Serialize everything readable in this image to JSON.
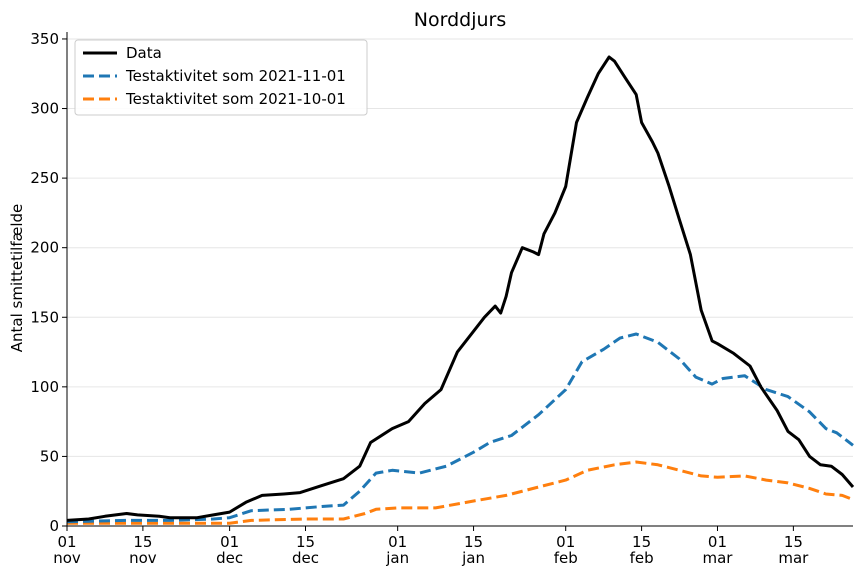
{
  "chart_data": {
    "type": "line",
    "title": "Norddjurs",
    "xlabel": "",
    "ylabel": "Antal smittetilfælde",
    "ylim": [
      0,
      355
    ],
    "xlim": [
      "2021-11-01",
      "2022-03-26"
    ],
    "grid": "horizontal",
    "legend_position": "top-left",
    "yticks": [
      0,
      50,
      100,
      150,
      200,
      250,
      300,
      350
    ],
    "xticks": [
      {
        "date": "2021-11-01",
        "day": "01",
        "month": "nov"
      },
      {
        "date": "2021-11-15",
        "day": "15",
        "month": "nov"
      },
      {
        "date": "2021-12-01",
        "day": "01",
        "month": "dec"
      },
      {
        "date": "2021-12-15",
        "day": "15",
        "month": "dec"
      },
      {
        "date": "2022-01-01",
        "day": "01",
        "month": "jan"
      },
      {
        "date": "2022-01-15",
        "day": "15",
        "month": "jan"
      },
      {
        "date": "2022-02-01",
        "day": "01",
        "month": "feb"
      },
      {
        "date": "2022-02-15",
        "day": "15",
        "month": "feb"
      },
      {
        "date": "2022-03-01",
        "day": "01",
        "month": "mar"
      },
      {
        "date": "2022-03-15",
        "day": "15",
        "month": "mar"
      }
    ],
    "series": [
      {
        "name": "Data",
        "color": "#000000",
        "style": "solid",
        "points": [
          [
            "2021-11-01",
            4
          ],
          [
            "2021-11-05",
            5
          ],
          [
            "2021-11-08",
            7
          ],
          [
            "2021-11-12",
            9
          ],
          [
            "2021-11-14",
            8
          ],
          [
            "2021-11-18",
            7
          ],
          [
            "2021-11-20",
            6
          ],
          [
            "2021-11-25",
            6
          ],
          [
            "2021-11-28",
            8
          ],
          [
            "2021-12-01",
            10
          ],
          [
            "2021-12-04",
            17
          ],
          [
            "2021-12-07",
            22
          ],
          [
            "2021-12-11",
            23
          ],
          [
            "2021-12-14",
            24
          ],
          [
            "2021-12-18",
            29
          ],
          [
            "2021-12-22",
            34
          ],
          [
            "2021-12-25",
            43
          ],
          [
            "2021-12-27",
            60
          ],
          [
            "2021-12-31",
            70
          ],
          [
            "2022-01-03",
            75
          ],
          [
            "2022-01-06",
            88
          ],
          [
            "2022-01-09",
            98
          ],
          [
            "2022-01-12",
            125
          ],
          [
            "2022-01-15",
            140
          ],
          [
            "2022-01-17",
            150
          ],
          [
            "2022-01-19",
            158
          ],
          [
            "2022-01-20",
            153
          ],
          [
            "2022-01-21",
            165
          ],
          [
            "2022-01-22",
            182
          ],
          [
            "2022-01-24",
            200
          ],
          [
            "2022-01-26",
            197
          ],
          [
            "2022-01-27",
            195
          ],
          [
            "2022-01-28",
            210
          ],
          [
            "2022-01-30",
            225
          ],
          [
            "2022-02-01",
            244
          ],
          [
            "2022-02-03",
            290
          ],
          [
            "2022-02-05",
            308
          ],
          [
            "2022-02-07",
            325
          ],
          [
            "2022-02-09",
            337
          ],
          [
            "2022-02-10",
            334
          ],
          [
            "2022-02-12",
            322
          ],
          [
            "2022-02-14",
            310
          ],
          [
            "2022-02-15",
            290
          ],
          [
            "2022-02-17",
            276
          ],
          [
            "2022-02-18",
            268
          ],
          [
            "2022-02-20",
            245
          ],
          [
            "2022-02-22",
            220
          ],
          [
            "2022-02-24",
            195
          ],
          [
            "2022-02-26",
            155
          ],
          [
            "2022-02-28",
            133
          ],
          [
            "2022-03-01",
            131
          ],
          [
            "2022-03-04",
            124
          ],
          [
            "2022-03-07",
            115
          ],
          [
            "2022-03-09",
            100
          ],
          [
            "2022-03-12",
            83
          ],
          [
            "2022-03-14",
            68
          ],
          [
            "2022-03-16",
            62
          ],
          [
            "2022-03-18",
            50
          ],
          [
            "2022-03-20",
            44
          ],
          [
            "2022-03-22",
            43
          ],
          [
            "2022-03-24",
            37
          ],
          [
            "2022-03-26",
            28
          ]
        ]
      },
      {
        "name": "Testaktivitet som 2021-11-01",
        "color": "#1f77b4",
        "style": "dashed",
        "points": [
          [
            "2021-11-01",
            3
          ],
          [
            "2021-11-12",
            4
          ],
          [
            "2021-11-20",
            4
          ],
          [
            "2021-11-28",
            5
          ],
          [
            "2021-12-01",
            6
          ],
          [
            "2021-12-05",
            11
          ],
          [
            "2021-12-12",
            12
          ],
          [
            "2021-12-18",
            14
          ],
          [
            "2021-12-22",
            15
          ],
          [
            "2021-12-25",
            25
          ],
          [
            "2021-12-28",
            38
          ],
          [
            "2021-12-31",
            40
          ],
          [
            "2022-01-05",
            38
          ],
          [
            "2022-01-10",
            43
          ],
          [
            "2022-01-15",
            53
          ],
          [
            "2022-01-18",
            60
          ],
          [
            "2022-01-22",
            65
          ],
          [
            "2022-01-27",
            80
          ],
          [
            "2022-02-01",
            98
          ],
          [
            "2022-02-04",
            118
          ],
          [
            "2022-02-08",
            127
          ],
          [
            "2022-02-11",
            135
          ],
          [
            "2022-02-14",
            138
          ],
          [
            "2022-02-18",
            132
          ],
          [
            "2022-02-22",
            120
          ],
          [
            "2022-02-25",
            107
          ],
          [
            "2022-02-28",
            102
          ],
          [
            "2022-03-02",
            106
          ],
          [
            "2022-03-06",
            108
          ],
          [
            "2022-03-10",
            98
          ],
          [
            "2022-03-14",
            93
          ],
          [
            "2022-03-18",
            82
          ],
          [
            "2022-03-21",
            70
          ],
          [
            "2022-03-23",
            67
          ],
          [
            "2022-03-26",
            58
          ]
        ]
      },
      {
        "name": "Testaktivitet som 2021-10-01",
        "color": "#ff7f0e",
        "style": "dashed",
        "points": [
          [
            "2021-11-01",
            2
          ],
          [
            "2021-11-15",
            2
          ],
          [
            "2021-11-25",
            2
          ],
          [
            "2021-12-01",
            2
          ],
          [
            "2021-12-05",
            4
          ],
          [
            "2021-12-15",
            5
          ],
          [
            "2021-12-22",
            5
          ],
          [
            "2021-12-26",
            9
          ],
          [
            "2021-12-28",
            12
          ],
          [
            "2022-01-01",
            13
          ],
          [
            "2022-01-08",
            13
          ],
          [
            "2022-01-15",
            18
          ],
          [
            "2022-01-21",
            22
          ],
          [
            "2022-01-27",
            28
          ],
          [
            "2022-02-01",
            33
          ],
          [
            "2022-02-05",
            40
          ],
          [
            "2022-02-10",
            44
          ],
          [
            "2022-02-14",
            46
          ],
          [
            "2022-02-18",
            44
          ],
          [
            "2022-02-22",
            40
          ],
          [
            "2022-02-26",
            36
          ],
          [
            "2022-03-01",
            35
          ],
          [
            "2022-03-06",
            36
          ],
          [
            "2022-03-10",
            33
          ],
          [
            "2022-03-14",
            31
          ],
          [
            "2022-03-18",
            27
          ],
          [
            "2022-03-21",
            23
          ],
          [
            "2022-03-24",
            22
          ],
          [
            "2022-03-26",
            19
          ]
        ]
      }
    ]
  }
}
